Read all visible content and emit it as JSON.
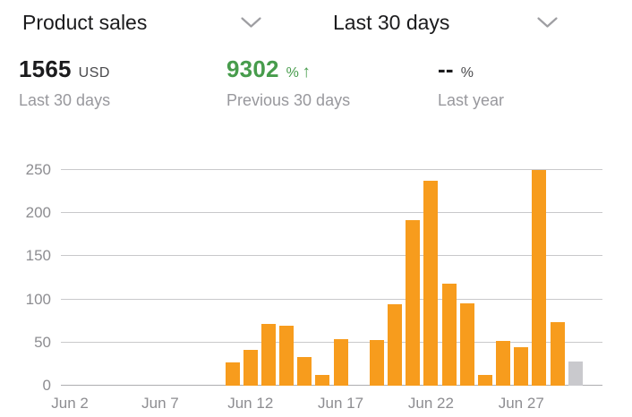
{
  "header": {
    "metric_selector": {
      "label": "Product sales"
    },
    "range_selector": {
      "label": "Last 30 days"
    }
  },
  "metrics": {
    "primary": {
      "value": "1565",
      "unit": "USD",
      "caption": "Last 30 days"
    },
    "comparison": {
      "value": "9302",
      "unit": "%",
      "direction": "↑",
      "caption": "Previous 30 days"
    },
    "last_year": {
      "value": "--",
      "unit": "%",
      "caption": "Last year"
    }
  },
  "colors": {
    "bar": "#F79C1D",
    "bar_current": "#C9C9CD",
    "positive": "#479C4C",
    "text_primary": "#1B1B1D",
    "text_secondary": "#98989D",
    "unit_color": "#4A4A4D",
    "tick": "#8D8D91",
    "gridline": "#C9C9CB",
    "axis_line": "#ADADB0",
    "chevron": "#9E9EA2"
  },
  "chart_data": {
    "type": "bar",
    "title": "Product sales",
    "xlabel": "",
    "ylabel": "",
    "ylim": [
      0,
      250
    ],
    "yticks": [
      0,
      50,
      100,
      150,
      200,
      250
    ],
    "grid": true,
    "legend": false,
    "categories": [
      "Jun 2",
      "Jun 3",
      "Jun 4",
      "Jun 5",
      "Jun 6",
      "Jun 7",
      "Jun 8",
      "Jun 9",
      "Jun 10",
      "Jun 11",
      "Jun 12",
      "Jun 13",
      "Jun 14",
      "Jun 15",
      "Jun 16",
      "Jun 17",
      "Jun 18",
      "Jun 19",
      "Jun 20",
      "Jun 21",
      "Jun 22",
      "Jun 23",
      "Jun 24",
      "Jun 25",
      "Jun 26",
      "Jun 27",
      "Jun 28",
      "Jun 29",
      "Jun 30",
      "Jul 1"
    ],
    "values": [
      0,
      0,
      0,
      0,
      0,
      0,
      0,
      0,
      0,
      27,
      41,
      72,
      69,
      33,
      12,
      54,
      0,
      53,
      94,
      192,
      238,
      118,
      95,
      12,
      52,
      45,
      250,
      74,
      28,
      0
    ],
    "current_day_index": 28,
    "xticks": [
      {
        "label": "Jun 2",
        "slot": 0
      },
      {
        "label": "Jun 7",
        "slot": 5
      },
      {
        "label": "Jun 12",
        "slot": 10
      },
      {
        "label": "Jun 17",
        "slot": 15
      },
      {
        "label": "Jun 22",
        "slot": 20
      },
      {
        "label": "Jun 27",
        "slot": 25
      }
    ]
  }
}
